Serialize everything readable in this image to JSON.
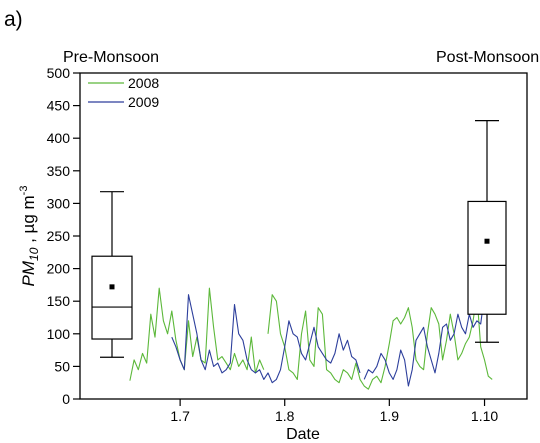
{
  "chart_data": {
    "type": "line",
    "panel_label": "a)",
    "xlabel": "Date",
    "ylabel_main": "PM",
    "ylabel_sub": "10",
    "ylabel_tail": " , µg m",
    "ylabel_sup": "-3",
    "xlim": [
      1.61,
      1.14
    ],
    "ylim": [
      0,
      500
    ],
    "xticks": [
      1.7,
      1.8,
      1.9,
      1.1
    ],
    "xtick_labels": [
      "1.7",
      "1.8",
      "1.9",
      "1.10"
    ],
    "yticks": [
      0,
      50,
      100,
      150,
      200,
      250,
      300,
      350,
      400,
      450,
      500
    ],
    "legend_position": "top-left",
    "grid": false,
    "series": [
      {
        "name": "2008",
        "color": "#5cb83a",
        "x": [
          1.652,
          1.656,
          1.66,
          1.664,
          1.668,
          1.672,
          1.676,
          1.68,
          1.684,
          1.688,
          1.692,
          1.696,
          1.7,
          1.704,
          1.708,
          1.712,
          1.716,
          1.72,
          1.724,
          1.728,
          1.732,
          1.736,
          1.74,
          1.744,
          1.748,
          1.752,
          1.756,
          1.76,
          1.764,
          1.768,
          1.772,
          1.776,
          1.78,
          1.784,
          1.788,
          1.792,
          1.796,
          1.8,
          1.804,
          1.808,
          1.812,
          1.816,
          1.82,
          1.824,
          1.828,
          1.832,
          1.836,
          1.84,
          1.844,
          1.848,
          1.852,
          1.856,
          1.86,
          1.864,
          1.868,
          1.872,
          1.876,
          1.88,
          1.884,
          1.888,
          1.892,
          1.896,
          1.9,
          1.904,
          1.908,
          1.912,
          1.916,
          1.92,
          1.924,
          1.928,
          1.932,
          1.936,
          1.94,
          1.944,
          1.948,
          1.952,
          1.956,
          1.96,
          1.964,
          1.968,
          1.972,
          1.976,
          1.98,
          1.984,
          1.988,
          1.992,
          1.996,
          1.1,
          1.104,
          1.108
        ],
        "values": [
          28,
          60,
          45,
          70,
          55,
          130,
          95,
          170,
          120,
          100,
          135,
          90,
          60,
          45,
          120,
          65,
          95,
          60,
          55,
          170,
          110,
          60,
          65,
          55,
          45,
          70,
          50,
          60,
          45,
          95,
          40,
          60,
          45,
          100,
          160,
          150,
          100,
          80,
          45,
          40,
          30,
          100,
          135,
          60,
          50,
          140,
          130,
          45,
          40,
          30,
          25,
          45,
          40,
          30,
          55,
          30,
          20,
          15,
          30,
          35,
          25,
          50,
          85,
          120,
          125,
          115,
          125,
          140,
          110,
          60,
          50,
          45,
          100,
          140,
          130,
          115,
          60,
          90,
          130,
          100,
          60,
          70,
          85,
          95,
          120,
          160,
          80,
          60,
          35,
          30
        ],
        "x_gaps_after": [
          1.78
        ]
      },
      {
        "name": "2009",
        "color": "#2d3f9c",
        "x": [
          1.692,
          1.696,
          1.7,
          1.704,
          1.708,
          1.712,
          1.716,
          1.72,
          1.724,
          1.728,
          1.732,
          1.736,
          1.74,
          1.744,
          1.748,
          1.752,
          1.756,
          1.76,
          1.764,
          1.768,
          1.772,
          1.776,
          1.78,
          1.784,
          1.788,
          1.792,
          1.796,
          1.8,
          1.804,
          1.808,
          1.812,
          1.816,
          1.82,
          1.824,
          1.828,
          1.832,
          1.836,
          1.84,
          1.844,
          1.848,
          1.852,
          1.856,
          1.86,
          1.864,
          1.868,
          1.872,
          1.876,
          1.88,
          1.884,
          1.888,
          1.892,
          1.896,
          1.9,
          1.904,
          1.908,
          1.912,
          1.916,
          1.92,
          1.924,
          1.928,
          1.932,
          1.936,
          1.94,
          1.944,
          1.948,
          1.952,
          1.956,
          1.96,
          1.964,
          1.968,
          1.972,
          1.976,
          1.98,
          1.984,
          1.988,
          1.992,
          1.996,
          1.1
        ],
        "values": [
          95,
          80,
          60,
          45,
          160,
          130,
          100,
          60,
          45,
          75,
          50,
          55,
          40,
          45,
          55,
          145,
          100,
          90,
          60,
          45,
          40,
          45,
          30,
          40,
          25,
          30,
          45,
          80,
          120,
          100,
          95,
          70,
          60,
          85,
          110,
          80,
          70,
          60,
          55,
          70,
          100,
          75,
          90,
          65,
          60,
          40,
          30,
          45,
          40,
          50,
          70,
          60,
          40,
          30,
          45,
          75,
          60,
          20,
          45,
          90,
          100,
          110,
          80,
          60,
          40,
          70,
          110,
          115,
          90,
          100,
          130,
          110,
          100,
          130,
          110,
          120,
          115,
          160
        ],
        "x_gaps_after": [
          1.872
        ]
      }
    ],
    "boxplots": [
      {
        "label": "Pre-Monsoon",
        "whisker_low": 64,
        "q1": 92,
        "median": 141,
        "q3": 219,
        "whisker_high": 318,
        "mean": 172
      },
      {
        "label": "Post-Monsoon",
        "whisker_low": 87,
        "q1": 130,
        "median": 205,
        "q3": 303,
        "whisker_high": 427,
        "mean": 242
      }
    ]
  }
}
